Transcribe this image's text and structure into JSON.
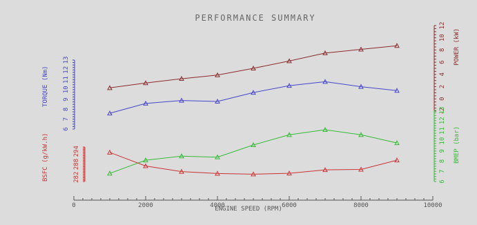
{
  "chart_data": {
    "type": "line",
    "title": "PERFORMANCE SUMMARY",
    "xlabel": "ENGINE SPEED (RPM)",
    "xlim": [
      0,
      10000
    ],
    "xticks": [
      "0",
      "2000",
      "4000",
      "6000",
      "8000",
      "10000"
    ],
    "x": [
      1000,
      2000,
      3000,
      4000,
      5000,
      6000,
      7000,
      8000,
      9000
    ],
    "grid": false,
    "legend": "none",
    "series": [
      {
        "name": "POWER (kW)",
        "axis": "right-top",
        "color": "#8b2a2a",
        "ylim": [
          -2,
          12
        ],
        "ticks": [
          "-2",
          "0",
          "2",
          "4",
          "6",
          "8",
          "10",
          "12"
        ],
        "values": [
          1.8,
          2.6,
          3.3,
          3.9,
          5.0,
          6.2,
          7.5,
          8.1,
          8.7
        ]
      },
      {
        "name": "TORQUE (Nm)",
        "axis": "left-top",
        "color": "#4444cc",
        "ylim": [
          6,
          13
        ],
        "ticks": [
          "6",
          "7",
          "8",
          "9",
          "10",
          "11",
          "12",
          "13"
        ],
        "values": [
          7.6,
          8.6,
          8.9,
          8.8,
          9.7,
          10.4,
          10.8,
          10.3,
          9.9
        ]
      },
      {
        "name": "BMEP (bar)",
        "axis": "right-bottom",
        "color": "#33bb33",
        "ylim": [
          6,
          13
        ],
        "ticks": [
          "6",
          "7",
          "8",
          "9",
          "10",
          "11",
          "12",
          "13"
        ],
        "values": [
          6.8,
          8.1,
          8.5,
          8.4,
          9.6,
          10.6,
          11.1,
          10.6,
          9.8
        ]
      },
      {
        "name": "BSFC (g/kW.h)",
        "axis": "left-bottom",
        "color": "#cc3333",
        "ylim": [
          280,
          296
        ],
        "ticks": [
          "282",
          "288",
          "294"
        ],
        "values": [
          293.5,
          287.2,
          284.6,
          283.7,
          283.4,
          283.8,
          285.4,
          285.6,
          289.9
        ]
      }
    ]
  }
}
